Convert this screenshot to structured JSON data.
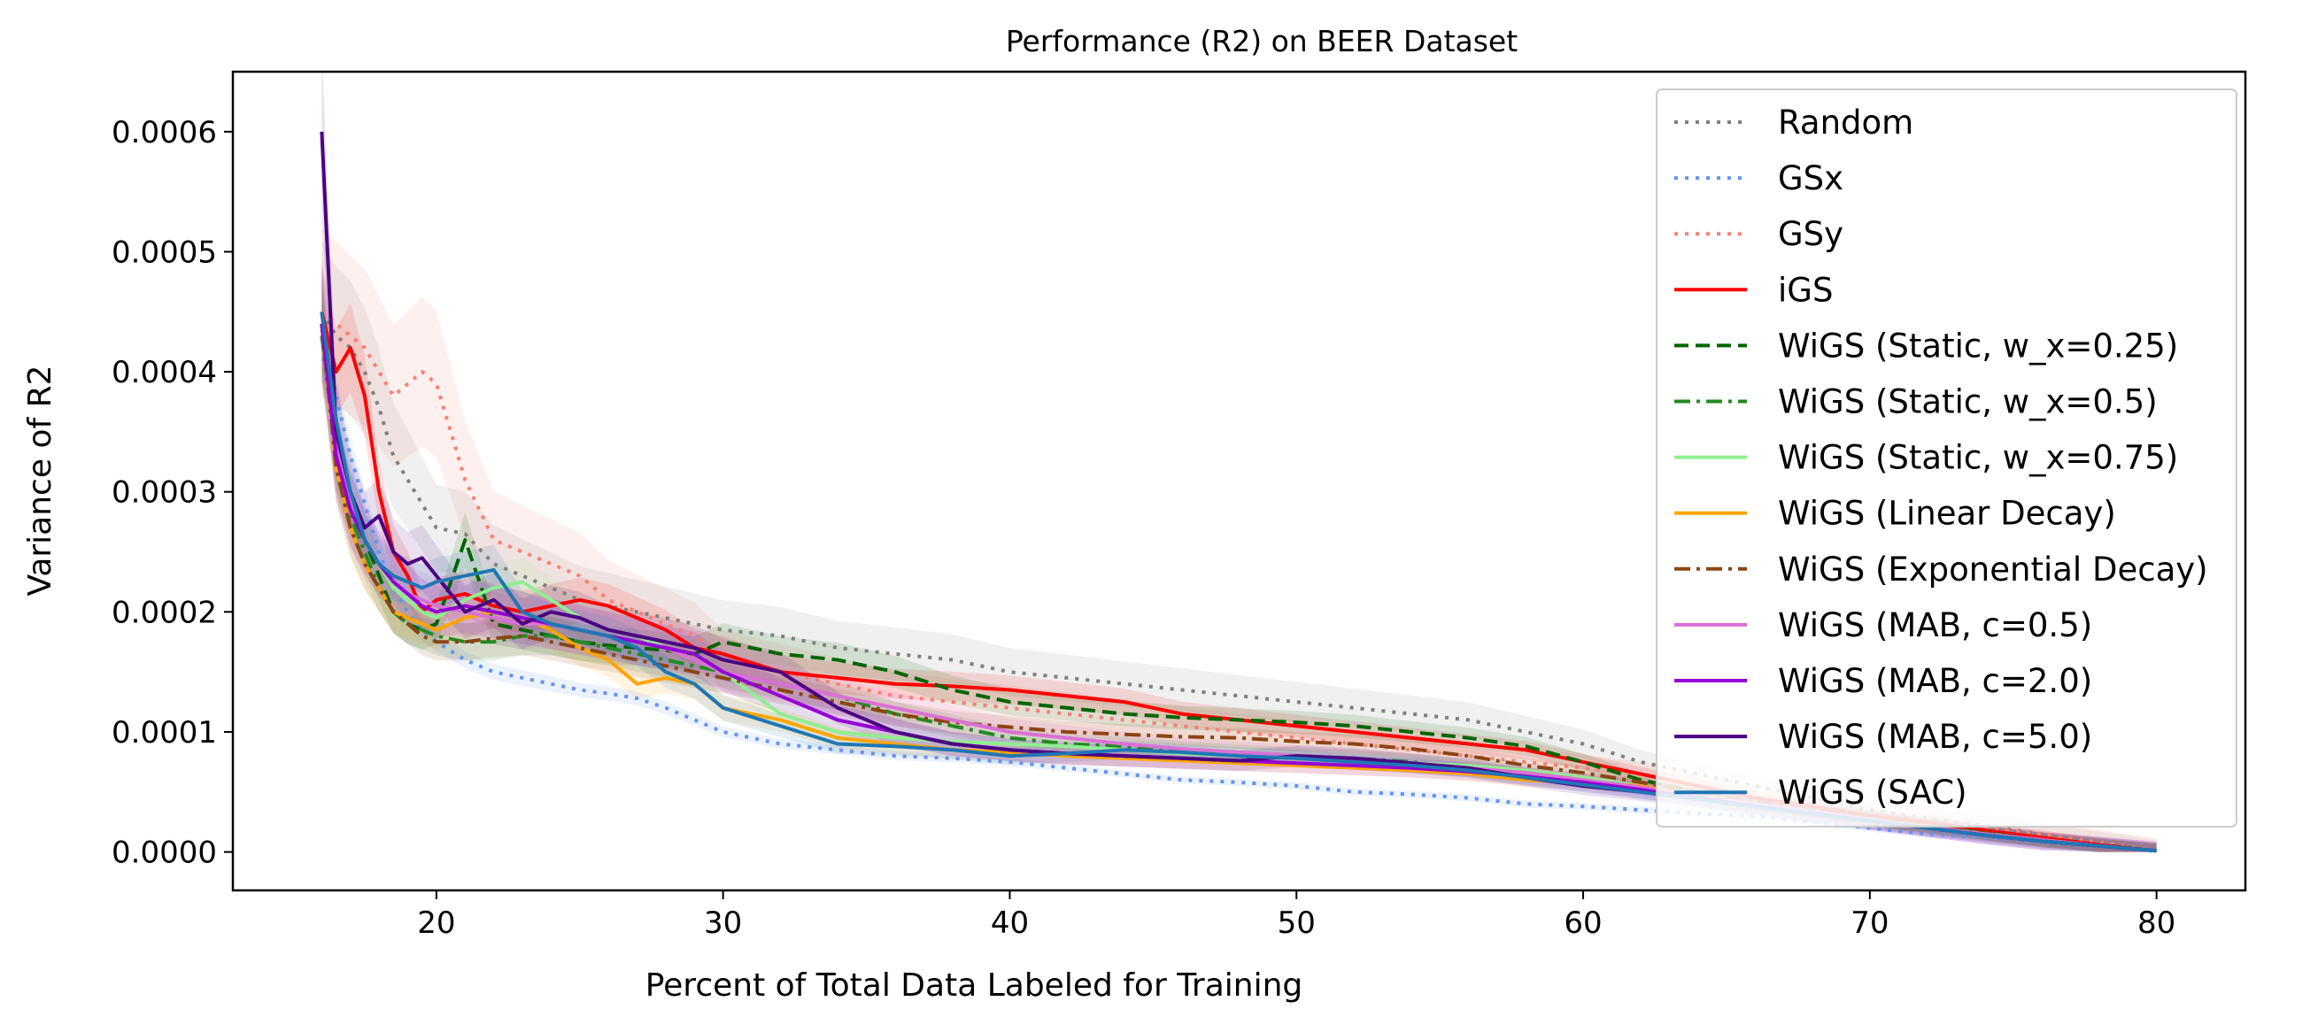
{
  "chart_data": {
    "type": "line",
    "title": "Performance (R2) on BEER Dataset",
    "xlabel": "Percent of Total Data Labeled for Training",
    "ylabel": "Variance of R2",
    "xlim": [
      12.9,
      83.1
    ],
    "ylim": [
      -3.2e-05,
      0.00065
    ],
    "xticks": [
      20,
      30,
      40,
      50,
      60,
      70,
      80
    ],
    "xtick_labels": [
      "20",
      "30",
      "40",
      "50",
      "60",
      "70",
      "80"
    ],
    "yticks": [
      0.0,
      0.0001,
      0.0002,
      0.0003,
      0.0004,
      0.0005,
      0.0006
    ],
    "ytick_labels": [
      "0.0000",
      "0.0001",
      "0.0002",
      "0.0003",
      "0.0004",
      "0.0005",
      "0.0006"
    ],
    "grid": false,
    "legend_position": "top-right",
    "x": [
      16,
      16.5,
      17,
      17.5,
      18,
      18.5,
      19,
      19.5,
      20,
      21,
      22,
      23,
      24,
      25,
      26,
      27,
      28,
      29,
      30,
      32,
      34,
      36,
      38,
      40,
      42,
      44,
      46,
      48,
      50,
      52,
      54,
      56,
      58,
      60,
      62,
      64,
      66,
      68,
      70,
      72,
      74,
      76,
      78,
      80
    ],
    "series": [
      {
        "name": "Random",
        "color": "#808080",
        "dash": "dot",
        "band_width": 6e-05,
        "values": [
          0.00045,
          0.00043,
          0.00042,
          0.0004,
          0.00037,
          0.00033,
          0.00031,
          0.00029,
          0.00027,
          0.000265,
          0.00024,
          0.00023,
          0.00022,
          0.00021,
          0.000205,
          0.0002,
          0.000195,
          0.00019,
          0.000185,
          0.00018,
          0.00017,
          0.000165,
          0.00016,
          0.00015,
          0.000145,
          0.00014,
          0.000135,
          0.00013,
          0.000125,
          0.00012,
          0.000115,
          0.00011,
          0.0001,
          9e-05,
          7.5e-05,
          6.5e-05,
          5.5e-05,
          4.5e-05,
          3.5e-05,
          2.8e-05,
          2.2e-05,
          1.5e-05,
          8e-06,
          1e-06
        ]
      },
      {
        "name": "GSx",
        "color": "#6495ed",
        "dash": "dot",
        "band_width": 2e-05,
        "values": [
          0.00044,
          0.00038,
          0.00033,
          0.00029,
          0.00025,
          0.00022,
          0.0002,
          0.000185,
          0.000175,
          0.00016,
          0.00015,
          0.000145,
          0.00014,
          0.000135,
          0.000132,
          0.000128,
          0.00012,
          0.00011,
          0.0001,
          9e-05,
          8.5e-05,
          8e-05,
          7.8e-05,
          7.5e-05,
          7e-05,
          6.5e-05,
          6e-05,
          5.8e-05,
          5.5e-05,
          5e-05,
          4.8e-05,
          4.5e-05,
          4e-05,
          3.8e-05,
          3.5e-05,
          3.2e-05,
          3e-05,
          2.5e-05,
          2e-05,
          1.5e-05,
          1.2e-05,
          8e-06,
          5e-06,
          1e-06
        ]
      },
      {
        "name": "GSy",
        "color": "#fa8072",
        "dash": "dot",
        "band_width": 7e-05,
        "values": [
          0.00045,
          0.00044,
          0.00043,
          0.00042,
          0.0004,
          0.00038,
          0.00039,
          0.0004,
          0.00039,
          0.00031,
          0.00026,
          0.00025,
          0.00024,
          0.00023,
          0.00021,
          0.0002,
          0.00019,
          0.00018,
          0.00016,
          0.00015,
          0.00014,
          0.00013,
          0.000125,
          0.00012,
          0.000115,
          0.00011,
          0.000105,
          0.0001,
          9.5e-05,
          9e-05,
          8.5e-05,
          8e-05,
          7.5e-05,
          7e-05,
          6.5e-05,
          5.5e-05,
          4.5e-05,
          4e-05,
          3e-05,
          2.5e-05,
          2e-05,
          1.5e-05,
          8e-06,
          1e-06
        ]
      },
      {
        "name": "iGS",
        "color": "#ff0000",
        "dash": "solid",
        "band_width": 4e-05,
        "values": [
          0.00045,
          0.0004,
          0.00042,
          0.00038,
          0.0003,
          0.00025,
          0.00023,
          0.0002,
          0.00021,
          0.000215,
          0.000205,
          0.0002,
          0.000205,
          0.00021,
          0.000205,
          0.000195,
          0.000185,
          0.00017,
          0.000165,
          0.00015,
          0.000145,
          0.00014,
          0.000138,
          0.000135,
          0.00013,
          0.000125,
          0.000115,
          0.00011,
          0.000105,
          0.0001,
          9.5e-05,
          9e-05,
          8.5e-05,
          7.5e-05,
          6.5e-05,
          5.5e-05,
          4.5e-05,
          3.8e-05,
          3e-05,
          2.5e-05,
          1.8e-05,
          1.2e-05,
          6e-06,
          1e-06
        ]
      },
      {
        "name": "WiGS (Static, w_x=0.25)",
        "color": "#006400",
        "dash": "dash",
        "band_width": 4e-05,
        "values": [
          0.00044,
          0.00033,
          0.00029,
          0.00026,
          0.00023,
          0.0002,
          0.00019,
          0.000185,
          0.00019,
          0.00026,
          0.00019,
          0.000185,
          0.00018,
          0.000175,
          0.000172,
          0.00017,
          0.000168,
          0.000165,
          0.000175,
          0.000165,
          0.00016,
          0.00015,
          0.000135,
          0.000125,
          0.00012,
          0.000115,
          0.000112,
          0.00011,
          0.000108,
          0.000105,
          0.0001,
          9.5e-05,
          8.8e-05,
          7.5e-05,
          6e-05,
          5e-05,
          4e-05,
          3.5e-05,
          2.8e-05,
          2.2e-05,
          1.6e-05,
          1e-05,
          5e-06,
          1e-06
        ]
      },
      {
        "name": "WiGS (Static, w_x=0.5)",
        "color": "#228b22",
        "dash": "dashdot",
        "band_width": 4e-05,
        "values": [
          0.00043,
          0.00033,
          0.00028,
          0.00025,
          0.00022,
          0.0002,
          0.00019,
          0.000185,
          0.00018,
          0.000175,
          0.000175,
          0.00018,
          0.00018,
          0.000175,
          0.00017,
          0.000165,
          0.00016,
          0.000155,
          0.00015,
          0.00014,
          0.00013,
          0.000115,
          0.000105,
          9.5e-05,
          9e-05,
          8.8e-05,
          8.5e-05,
          8.2e-05,
          8e-05,
          7.8e-05,
          7.5e-05,
          7e-05,
          6.5e-05,
          6e-05,
          5.5e-05,
          4.8e-05,
          4e-05,
          3.5e-05,
          2.8e-05,
          2.2e-05,
          1.6e-05,
          1e-05,
          5e-06,
          1e-06
        ]
      },
      {
        "name": "WiGS (Static, w_x=0.75)",
        "color": "#90ee90",
        "dash": "solid",
        "band_width": 4e-05,
        "values": [
          0.00044,
          0.00034,
          0.00029,
          0.00026,
          0.00024,
          0.00022,
          0.00021,
          0.0002,
          0.000195,
          0.00021,
          0.00022,
          0.000225,
          0.00021,
          0.000195,
          0.000185,
          0.00018,
          0.00017,
          0.00016,
          0.00015,
          0.000115,
          0.0001,
          9.5e-05,
          9.2e-05,
          9e-05,
          8.8e-05,
          8.5e-05,
          8.2e-05,
          8e-05,
          7.8e-05,
          7.6e-05,
          7.4e-05,
          7.2e-05,
          6.8e-05,
          6.2e-05,
          5.5e-05,
          4.8e-05,
          4e-05,
          3.4e-05,
          2.7e-05,
          2.1e-05,
          1.5e-05,
          1e-05,
          5e-06,
          1e-06
        ]
      },
      {
        "name": "WiGS (Linear Decay)",
        "color": "#ffa500",
        "dash": "solid",
        "band_width": 4e-05,
        "values": [
          0.00044,
          0.00032,
          0.00027,
          0.00024,
          0.00022,
          0.0002,
          0.000195,
          0.00019,
          0.000185,
          0.000195,
          0.0002,
          0.000195,
          0.000185,
          0.00017,
          0.00016,
          0.00014,
          0.000145,
          0.00014,
          0.00012,
          0.00011,
          9.5e-05,
          9e-05,
          8.5e-05,
          8.3e-05,
          8e-05,
          7.8e-05,
          7.6e-05,
          7.4e-05,
          7.2e-05,
          7e-05,
          6.8e-05,
          6.5e-05,
          6e-05,
          5.8e-05,
          5.5e-05,
          4.8e-05,
          4e-05,
          3.4e-05,
          2.7e-05,
          2.1e-05,
          1.5e-05,
          1e-05,
          5e-06,
          1e-06
        ]
      },
      {
        "name": "WiGS (Exponential Decay)",
        "color": "#8b4513",
        "dash": "dashdot",
        "band_width": 4e-05,
        "values": [
          0.00044,
          0.00032,
          0.00027,
          0.00024,
          0.00022,
          0.0002,
          0.00019,
          0.00018,
          0.000175,
          0.000175,
          0.000178,
          0.00018,
          0.000175,
          0.00017,
          0.000165,
          0.00016,
          0.000155,
          0.00015,
          0.000145,
          0.000135,
          0.000125,
          0.000115,
          0.000108,
          0.000104,
          0.0001,
          9.8e-05,
          9.6e-05,
          9.5e-05,
          9.2e-05,
          9e-05,
          8.6e-05,
          8e-05,
          7.2e-05,
          6.6e-05,
          5.8e-05,
          5e-05,
          4.2e-05,
          3.5e-05,
          2.8e-05,
          2.2e-05,
          1.6e-05,
          1e-05,
          5e-06,
          1e-06
        ]
      },
      {
        "name": "WiGS (MAB, c=0.5)",
        "color": "#da70d6",
        "dash": "solid",
        "band_width": 5e-05,
        "values": [
          0.00045,
          0.00034,
          0.00029,
          0.00026,
          0.00024,
          0.000225,
          0.000215,
          0.00021,
          0.000205,
          0.0002,
          0.000195,
          0.00019,
          0.00019,
          0.000185,
          0.00018,
          0.000175,
          0.00017,
          0.00016,
          0.00015,
          0.00014,
          0.00013,
          0.00012,
          0.00011,
          0.0001,
          9.5e-05,
          9e-05,
          8.6e-05,
          8.3e-05,
          8e-05,
          7.7e-05,
          7.4e-05,
          7e-05,
          6.6e-05,
          6e-05,
          5.4e-05,
          4.7e-05,
          4e-05,
          3.4e-05,
          2.7e-05,
          2.1e-05,
          1.5e-05,
          1e-05,
          5e-06,
          1e-06
        ]
      },
      {
        "name": "WiGS (MAB, c=2.0)",
        "color": "#9400d3",
        "dash": "solid",
        "band_width": 5e-05,
        "values": [
          0.00044,
          0.00033,
          0.000285,
          0.00026,
          0.00024,
          0.000225,
          0.000215,
          0.000205,
          0.0002,
          0.000205,
          0.0002,
          0.000195,
          0.00019,
          0.000185,
          0.00018,
          0.000175,
          0.00017,
          0.000165,
          0.00015,
          0.00013,
          0.00011,
          0.0001,
          9e-05,
          8.5e-05,
          8.2e-05,
          8e-05,
          7.8e-05,
          7.6e-05,
          7.4e-05,
          7.2e-05,
          7e-05,
          6.7e-05,
          6.3e-05,
          5.8e-05,
          5.2e-05,
          4.5e-05,
          3.8e-05,
          3.2e-05,
          2.6e-05,
          2e-05,
          1.4e-05,
          9e-06,
          5e-06,
          1e-06
        ]
      },
      {
        "name": "WiGS (MAB, c=5.0)",
        "color": "#4b0082",
        "dash": "solid",
        "band_width": 5e-05,
        "values": [
          0.0006,
          0.00035,
          0.0003,
          0.00027,
          0.00028,
          0.00025,
          0.00024,
          0.000245,
          0.00023,
          0.0002,
          0.00021,
          0.00019,
          0.0002,
          0.000195,
          0.000185,
          0.00018,
          0.000175,
          0.00017,
          0.00016,
          0.00015,
          0.00012,
          0.0001,
          9e-05,
          8.5e-05,
          8.2e-05,
          8e-05,
          7.8e-05,
          7.6e-05,
          8e-05,
          7.8e-05,
          7.4e-05,
          7e-05,
          6.2e-05,
          5.5e-05,
          5e-05,
          4.4e-05,
          3.8e-05,
          3.2e-05,
          2.6e-05,
          2e-05,
          1.4e-05,
          9e-06,
          5e-06,
          1e-06
        ]
      },
      {
        "name": "WiGS (SAC)",
        "color": "#1f77b4",
        "dash": "solid",
        "band_width": 4e-05,
        "values": [
          0.00045,
          0.00036,
          0.0003,
          0.00026,
          0.00024,
          0.00023,
          0.000225,
          0.00022,
          0.000225,
          0.00023,
          0.000235,
          0.0002,
          0.00019,
          0.000185,
          0.00018,
          0.00017,
          0.00015,
          0.00014,
          0.00012,
          0.000105,
          9e-05,
          8.8e-05,
          8.5e-05,
          8e-05,
          8.2e-05,
          8.5e-05,
          8.3e-05,
          8e-05,
          7.8e-05,
          7.5e-05,
          7.2e-05,
          6.8e-05,
          6.2e-05,
          5.6e-05,
          5e-05,
          4.4e-05,
          3.8e-05,
          3.2e-05,
          2.6e-05,
          2e-05,
          1.4e-05,
          9e-06,
          5e-06,
          1e-06
        ]
      }
    ]
  }
}
